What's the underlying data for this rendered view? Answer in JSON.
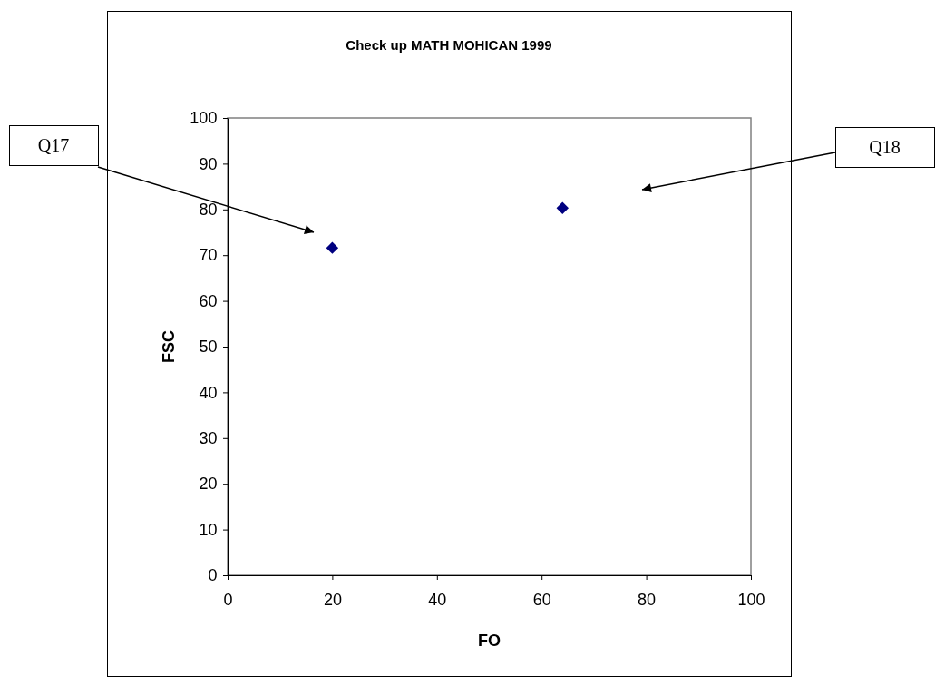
{
  "chart_data": {
    "type": "scatter",
    "title": "Check up MATH MOHICAN 1999",
    "xlabel": "FO",
    "ylabel": "FSC",
    "x": [
      20,
      64
    ],
    "values": [
      71.6,
      80.3
    ],
    "color": "#000080",
    "marker": "diamond",
    "xlim": [
      0,
      100
    ],
    "xticks": [
      0,
      20,
      40,
      60,
      80,
      100
    ],
    "ylim": [
      0,
      100
    ],
    "yticks": [
      0,
      10,
      20,
      30,
      40,
      50,
      60,
      70,
      80,
      90,
      100
    ],
    "grid": false,
    "annotations": [
      "Q17",
      "Q18"
    ]
  }
}
